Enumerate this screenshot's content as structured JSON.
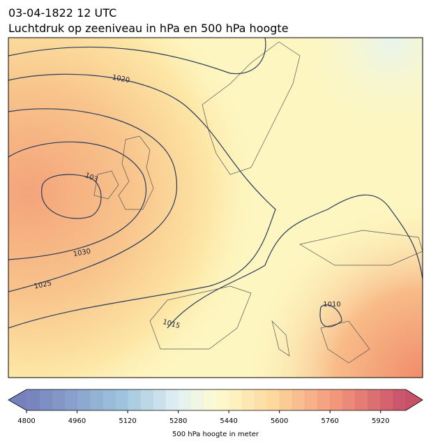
{
  "header": {
    "title_lines": [
      "03-04-1822 12 UTC",
      "Luchtdruk op zeeniveau in hPa en 500 hPa hoogte"
    ]
  },
  "map": {
    "contour_labels": [
      "1020",
      "103",
      "1030",
      "1025",
      "1015",
      "1010"
    ]
  },
  "colorbar": {
    "lim": [
      4800,
      6000
    ],
    "ticks": [
      4800,
      4960,
      5120,
      5280,
      5440,
      5600,
      5760,
      5920
    ],
    "label": "500 hPa hoogte in meter"
  }
}
